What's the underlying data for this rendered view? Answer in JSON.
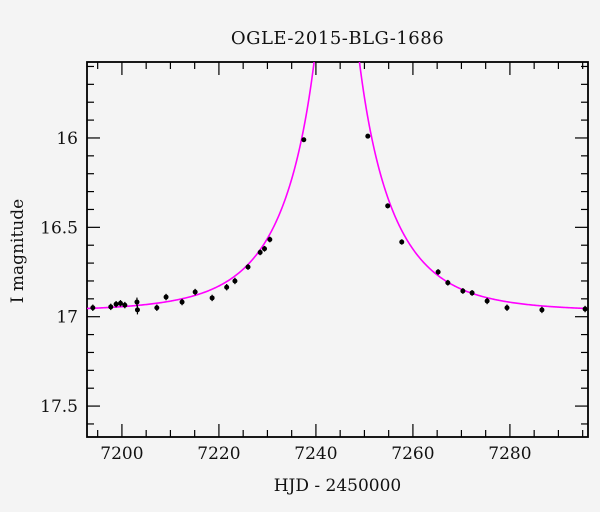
{
  "window": {
    "background": "#f4f4f4"
  },
  "chart_data": {
    "type": "scatter",
    "title": "OGLE-2015-BLG-1686",
    "xlabel": "HJD - 2450000",
    "ylabel": "I magnitude",
    "xlim": [
      7192.8,
      7296.1
    ],
    "ylim": [
      17.673,
      15.575
    ],
    "y_axis_inverted_magnitude": true,
    "grid": false,
    "x_major_ticks": [
      7200,
      7220,
      7240,
      7260,
      7280
    ],
    "x_tick_labels": [
      "7200",
      "7220",
      "7240",
      "7260",
      "7280"
    ],
    "x_minor_tick_step": 5,
    "y_major_ticks": [
      16,
      16.5,
      17,
      17.5
    ],
    "y_tick_labels": [
      "16",
      "16.5",
      "17",
      "17.5"
    ],
    "y_minor_tick_step": 0.1,
    "axis_color": "#000000",
    "series": [
      {
        "name": "ogle-i-band-photometry",
        "type": "scatter",
        "marker": "filled-circle",
        "color": "#000000",
        "points": [
          [
            7194.0,
            16.95,
            0.018
          ],
          [
            7197.7,
            16.945,
            0.018
          ],
          [
            7198.8,
            16.93,
            0.018
          ],
          [
            7199.7,
            16.925,
            0.018
          ],
          [
            7200.6,
            16.935,
            0.018
          ],
          [
            7203.1,
            16.918,
            0.025
          ],
          [
            7203.2,
            16.962,
            0.025
          ],
          [
            7207.2,
            16.95,
            0.018
          ],
          [
            7209.1,
            16.89,
            0.018
          ],
          [
            7212.4,
            16.918,
            0.018
          ],
          [
            7215.1,
            16.862,
            0.018
          ],
          [
            7218.6,
            16.895,
            0.018
          ],
          [
            7221.6,
            16.835,
            0.018
          ],
          [
            7223.3,
            16.8,
            0.018
          ],
          [
            7226.0,
            16.722,
            0.016
          ],
          [
            7228.5,
            16.64,
            0.016
          ],
          [
            7229.4,
            16.62,
            0.016
          ],
          [
            7230.5,
            16.568,
            0.016
          ],
          [
            7237.5,
            16.01,
            0.012
          ],
          [
            7250.7,
            15.99,
            0.012
          ],
          [
            7254.8,
            16.38,
            0.014
          ],
          [
            7257.7,
            16.582,
            0.015
          ],
          [
            7265.2,
            16.75,
            0.016
          ],
          [
            7267.2,
            16.81,
            0.016
          ],
          [
            7270.3,
            16.856,
            0.016
          ],
          [
            7272.2,
            16.867,
            0.016
          ],
          [
            7275.3,
            16.912,
            0.018
          ],
          [
            7279.4,
            16.95,
            0.018
          ],
          [
            7286.6,
            16.962,
            0.018
          ],
          [
            7295.5,
            16.957,
            0.018
          ]
        ]
      },
      {
        "name": "microlensing-model-curve",
        "type": "line",
        "color": "#ff00ff",
        "model": "paczynski",
        "params": {
          "t0": 7244.3,
          "tE": 16.5,
          "u0": 0.03,
          "I_base": 16.97
        }
      }
    ]
  }
}
